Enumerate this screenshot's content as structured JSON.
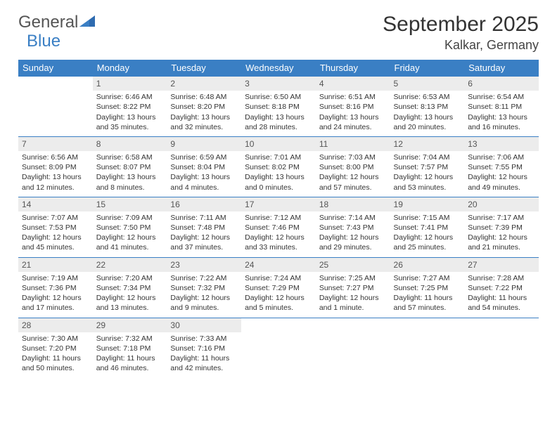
{
  "brand": {
    "part1": "General",
    "part2": "Blue"
  },
  "title": "September 2025",
  "location": "Kalkar, Germany",
  "colors": {
    "accent": "#3a7fc4",
    "header_bg": "#3a7fc4",
    "daynum_bg": "#ececec",
    "text": "#333333"
  },
  "day_headers": [
    "Sunday",
    "Monday",
    "Tuesday",
    "Wednesday",
    "Thursday",
    "Friday",
    "Saturday"
  ],
  "weeks": [
    [
      {
        "day": "",
        "sunrise": "",
        "sunset": "",
        "daylight": ""
      },
      {
        "day": "1",
        "sunrise": "Sunrise: 6:46 AM",
        "sunset": "Sunset: 8:22 PM",
        "daylight": "Daylight: 13 hours and 35 minutes."
      },
      {
        "day": "2",
        "sunrise": "Sunrise: 6:48 AM",
        "sunset": "Sunset: 8:20 PM",
        "daylight": "Daylight: 13 hours and 32 minutes."
      },
      {
        "day": "3",
        "sunrise": "Sunrise: 6:50 AM",
        "sunset": "Sunset: 8:18 PM",
        "daylight": "Daylight: 13 hours and 28 minutes."
      },
      {
        "day": "4",
        "sunrise": "Sunrise: 6:51 AM",
        "sunset": "Sunset: 8:16 PM",
        "daylight": "Daylight: 13 hours and 24 minutes."
      },
      {
        "day": "5",
        "sunrise": "Sunrise: 6:53 AM",
        "sunset": "Sunset: 8:13 PM",
        "daylight": "Daylight: 13 hours and 20 minutes."
      },
      {
        "day": "6",
        "sunrise": "Sunrise: 6:54 AM",
        "sunset": "Sunset: 8:11 PM",
        "daylight": "Daylight: 13 hours and 16 minutes."
      }
    ],
    [
      {
        "day": "7",
        "sunrise": "Sunrise: 6:56 AM",
        "sunset": "Sunset: 8:09 PM",
        "daylight": "Daylight: 13 hours and 12 minutes."
      },
      {
        "day": "8",
        "sunrise": "Sunrise: 6:58 AM",
        "sunset": "Sunset: 8:07 PM",
        "daylight": "Daylight: 13 hours and 8 minutes."
      },
      {
        "day": "9",
        "sunrise": "Sunrise: 6:59 AM",
        "sunset": "Sunset: 8:04 PM",
        "daylight": "Daylight: 13 hours and 4 minutes."
      },
      {
        "day": "10",
        "sunrise": "Sunrise: 7:01 AM",
        "sunset": "Sunset: 8:02 PM",
        "daylight": "Daylight: 13 hours and 0 minutes."
      },
      {
        "day": "11",
        "sunrise": "Sunrise: 7:03 AM",
        "sunset": "Sunset: 8:00 PM",
        "daylight": "Daylight: 12 hours and 57 minutes."
      },
      {
        "day": "12",
        "sunrise": "Sunrise: 7:04 AM",
        "sunset": "Sunset: 7:57 PM",
        "daylight": "Daylight: 12 hours and 53 minutes."
      },
      {
        "day": "13",
        "sunrise": "Sunrise: 7:06 AM",
        "sunset": "Sunset: 7:55 PM",
        "daylight": "Daylight: 12 hours and 49 minutes."
      }
    ],
    [
      {
        "day": "14",
        "sunrise": "Sunrise: 7:07 AM",
        "sunset": "Sunset: 7:53 PM",
        "daylight": "Daylight: 12 hours and 45 minutes."
      },
      {
        "day": "15",
        "sunrise": "Sunrise: 7:09 AM",
        "sunset": "Sunset: 7:50 PM",
        "daylight": "Daylight: 12 hours and 41 minutes."
      },
      {
        "day": "16",
        "sunrise": "Sunrise: 7:11 AM",
        "sunset": "Sunset: 7:48 PM",
        "daylight": "Daylight: 12 hours and 37 minutes."
      },
      {
        "day": "17",
        "sunrise": "Sunrise: 7:12 AM",
        "sunset": "Sunset: 7:46 PM",
        "daylight": "Daylight: 12 hours and 33 minutes."
      },
      {
        "day": "18",
        "sunrise": "Sunrise: 7:14 AM",
        "sunset": "Sunset: 7:43 PM",
        "daylight": "Daylight: 12 hours and 29 minutes."
      },
      {
        "day": "19",
        "sunrise": "Sunrise: 7:15 AM",
        "sunset": "Sunset: 7:41 PM",
        "daylight": "Daylight: 12 hours and 25 minutes."
      },
      {
        "day": "20",
        "sunrise": "Sunrise: 7:17 AM",
        "sunset": "Sunset: 7:39 PM",
        "daylight": "Daylight: 12 hours and 21 minutes."
      }
    ],
    [
      {
        "day": "21",
        "sunrise": "Sunrise: 7:19 AM",
        "sunset": "Sunset: 7:36 PM",
        "daylight": "Daylight: 12 hours and 17 minutes."
      },
      {
        "day": "22",
        "sunrise": "Sunrise: 7:20 AM",
        "sunset": "Sunset: 7:34 PM",
        "daylight": "Daylight: 12 hours and 13 minutes."
      },
      {
        "day": "23",
        "sunrise": "Sunrise: 7:22 AM",
        "sunset": "Sunset: 7:32 PM",
        "daylight": "Daylight: 12 hours and 9 minutes."
      },
      {
        "day": "24",
        "sunrise": "Sunrise: 7:24 AM",
        "sunset": "Sunset: 7:29 PM",
        "daylight": "Daylight: 12 hours and 5 minutes."
      },
      {
        "day": "25",
        "sunrise": "Sunrise: 7:25 AM",
        "sunset": "Sunset: 7:27 PM",
        "daylight": "Daylight: 12 hours and 1 minute."
      },
      {
        "day": "26",
        "sunrise": "Sunrise: 7:27 AM",
        "sunset": "Sunset: 7:25 PM",
        "daylight": "Daylight: 11 hours and 57 minutes."
      },
      {
        "day": "27",
        "sunrise": "Sunrise: 7:28 AM",
        "sunset": "Sunset: 7:22 PM",
        "daylight": "Daylight: 11 hours and 54 minutes."
      }
    ],
    [
      {
        "day": "28",
        "sunrise": "Sunrise: 7:30 AM",
        "sunset": "Sunset: 7:20 PM",
        "daylight": "Daylight: 11 hours and 50 minutes."
      },
      {
        "day": "29",
        "sunrise": "Sunrise: 7:32 AM",
        "sunset": "Sunset: 7:18 PM",
        "daylight": "Daylight: 11 hours and 46 minutes."
      },
      {
        "day": "30",
        "sunrise": "Sunrise: 7:33 AM",
        "sunset": "Sunset: 7:16 PM",
        "daylight": "Daylight: 11 hours and 42 minutes."
      },
      {
        "day": "",
        "sunrise": "",
        "sunset": "",
        "daylight": ""
      },
      {
        "day": "",
        "sunrise": "",
        "sunset": "",
        "daylight": ""
      },
      {
        "day": "",
        "sunrise": "",
        "sunset": "",
        "daylight": ""
      },
      {
        "day": "",
        "sunrise": "",
        "sunset": "",
        "daylight": ""
      }
    ]
  ]
}
